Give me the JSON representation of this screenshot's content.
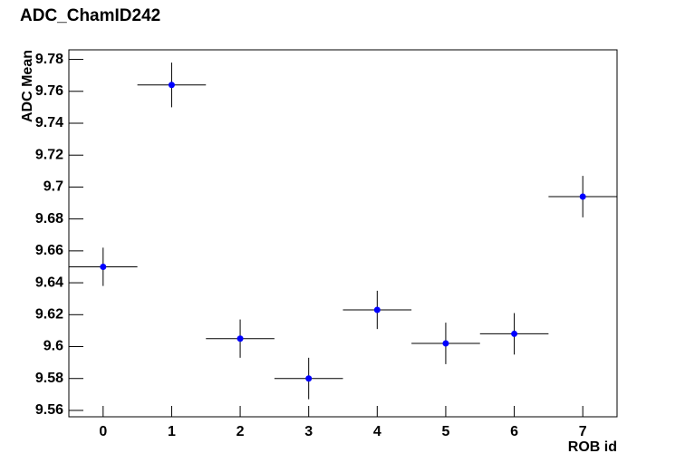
{
  "chart_data": {
    "type": "scatter",
    "title": "ADC_ChamID242",
    "x_label": "ROB id",
    "y_label": "ADC Mean",
    "x": [
      0,
      1,
      2,
      3,
      4,
      5,
      6,
      7
    ],
    "values": [
      9.65,
      9.764,
      9.605,
      9.58,
      9.623,
      9.602,
      9.608,
      9.694
    ],
    "errors": [
      0.012,
      0.014,
      0.012,
      0.013,
      0.012,
      0.013,
      0.013,
      0.013
    ],
    "x_errors": [
      0.5,
      0.5,
      0.5,
      0.5,
      0.5,
      0.5,
      0.5,
      0.5
    ],
    "color": "#0000ff",
    "xlim": [
      -0.5,
      7.5
    ],
    "xticks": [
      0,
      1,
      2,
      3,
      4,
      5,
      6,
      7
    ],
    "ylim": [
      9.556,
      9.786
    ],
    "yticks": [
      9.56,
      9.58,
      9.6,
      9.62,
      9.64,
      9.66,
      9.68,
      9.7,
      9.72,
      9.74,
      9.76,
      9.78
    ]
  }
}
